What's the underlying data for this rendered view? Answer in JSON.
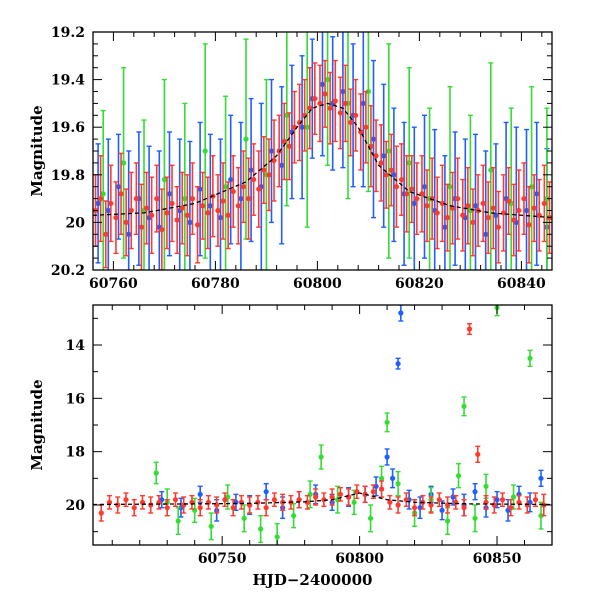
{
  "chart_data": [
    {
      "type": "scatter",
      "title": "",
      "xlabel": "",
      "ylabel": "Magnitude",
      "xlim": [
        60756,
        60846
      ],
      "ylim": [
        20.2,
        19.2
      ],
      "y_inverted": true,
      "x_ticks": [
        60760,
        60780,
        60800,
        60820,
        60840
      ],
      "x_tick_labels": [
        "60760",
        "60780",
        "60800",
        "60820",
        "60840"
      ],
      "y_ticks": [
        19.2,
        19.4,
        19.6,
        19.8,
        20,
        20.2
      ],
      "y_tick_labels": [
        "19.2",
        "19.4",
        "19.6",
        "19.8",
        "20",
        "20.2"
      ],
      "error_bars": true,
      "model_curve": {
        "x": [
          60756,
          60766,
          60776,
          60786,
          60792,
          60796,
          60799,
          60802,
          60805,
          60808,
          60812,
          60818,
          60826,
          60834,
          60846
        ],
        "y": [
          19.97,
          19.96,
          19.92,
          19.83,
          19.72,
          19.6,
          19.52,
          19.5,
          19.52,
          19.6,
          19.76,
          19.87,
          19.93,
          19.96,
          19.98
        ],
        "color": "#000000"
      },
      "series": [
        {
          "color": "#1f5fff",
          "x": [
            60757,
            60759,
            60761,
            60763,
            60765,
            60767,
            60769,
            60771,
            60773,
            60775,
            60777,
            60779,
            60781,
            60783,
            60785,
            60787,
            60789,
            60791,
            60793,
            60795,
            60797,
            60799,
            60801,
            60803,
            60805,
            60807,
            60809,
            60811,
            60813,
            60815,
            60817,
            60819,
            60821,
            60823,
            60825,
            60827,
            60829,
            60831,
            60833,
            60835,
            60837,
            60839,
            60841,
            60843,
            60845
          ],
          "y": [
            19.92,
            19.95,
            19.85,
            20.05,
            19.9,
            19.98,
            20.02,
            19.88,
            19.95,
            20.0,
            19.86,
            19.93,
            19.98,
            19.82,
            19.9,
            19.78,
            19.85,
            19.7,
            19.76,
            19.62,
            19.6,
            19.48,
            19.42,
            19.5,
            19.45,
            19.55,
            19.5,
            19.65,
            19.72,
            19.8,
            19.88,
            19.92,
            19.85,
            19.95,
            20.02,
            19.9,
            19.98,
            19.93,
            20.05,
            19.97,
            19.9,
            20.0,
            19.95,
            19.88,
            20.02
          ],
          "yerr": [
            0.25,
            0.3,
            0.22,
            0.35,
            0.28,
            0.3,
            0.32,
            0.26,
            0.3,
            0.34,
            0.28,
            0.3,
            0.33,
            0.27,
            0.32,
            0.3,
            0.35,
            0.3,
            0.33,
            0.28,
            0.3,
            0.25,
            0.3,
            0.28,
            0.32,
            0.3,
            0.35,
            0.33,
            0.3,
            0.28,
            0.3,
            0.32,
            0.3,
            0.34,
            0.3,
            0.28,
            0.33,
            0.3,
            0.35,
            0.3,
            0.32,
            0.4,
            0.34,
            0.3,
            0.33
          ]
        },
        {
          "color": "#33dd33",
          "x": [
            60758,
            60762,
            60766,
            60770,
            60774,
            60778,
            60782,
            60786,
            60790,
            60794,
            60798,
            60802,
            60806,
            60810,
            60814,
            60818,
            60822,
            60826,
            60830,
            60834,
            60838,
            60842,
            60845
          ],
          "y": [
            19.88,
            19.75,
            19.95,
            19.82,
            19.9,
            19.7,
            19.85,
            19.65,
            19.8,
            19.55,
            19.6,
            19.4,
            19.5,
            19.45,
            19.7,
            19.75,
            19.9,
            19.85,
            19.95,
            19.78,
            19.92,
            19.85,
            19.9
          ],
          "yerr": [
            0.35,
            0.4,
            0.38,
            0.42,
            0.4,
            0.45,
            0.38,
            0.42,
            0.4,
            0.38,
            0.42,
            0.36,
            0.4,
            0.42,
            0.45,
            0.4,
            0.38,
            0.42,
            0.4,
            0.45,
            0.4,
            0.42,
            0.38
          ]
        },
        {
          "color": "#ff3b2f",
          "x": [
            60756.5,
            60757.5,
            60758.5,
            60759.5,
            60760.5,
            60761.5,
            60762.5,
            60763.5,
            60764.5,
            60765.5,
            60766.5,
            60767.5,
            60768.5,
            60769.5,
            60770.5,
            60771.5,
            60772.5,
            60773.5,
            60774.5,
            60775.5,
            60776.5,
            60777.5,
            60778.5,
            60779.5,
            60780.5,
            60781.5,
            60782.5,
            60783.5,
            60784.5,
            60785.5,
            60786.5,
            60787.5,
            60788.5,
            60789.5,
            60790.5,
            60791.5,
            60792.5,
            60793.5,
            60794.5,
            60795.5,
            60796.5,
            60797.5,
            60798.5,
            60799.5,
            60800.5,
            60801.5,
            60802.5,
            60803.5,
            60804.5,
            60805.5,
            60806.5,
            60807.5,
            60808.5,
            60809.5,
            60810.5,
            60811.5,
            60812.5,
            60813.5,
            60814.5,
            60815.5,
            60816.5,
            60817.5,
            60818.5,
            60819.5,
            60820.5,
            60821.5,
            60822.5,
            60823.5,
            60824.5,
            60825.5,
            60826.5,
            60827.5,
            60828.5,
            60829.5,
            60830.5,
            60831.5,
            60832.5,
            60833.5,
            60834.5,
            60835.5,
            60836.5,
            60837.5,
            60838.5,
            60839.5,
            60840.5,
            60841.5,
            60842.5,
            60843.5,
            60844.5,
            60845.5
          ],
          "y": [
            19.95,
            19.9,
            20.05,
            19.92,
            19.98,
            19.88,
            20.0,
            19.95,
            19.9,
            20.02,
            19.94,
            19.97,
            19.9,
            20.03,
            19.96,
            19.92,
            19.99,
            19.94,
            19.97,
            19.9,
            20.01,
            19.93,
            19.96,
            19.89,
            19.95,
            19.91,
            19.97,
            19.87,
            19.93,
            19.85,
            19.9,
            19.82,
            19.86,
            19.78,
            19.8,
            19.74,
            19.7,
            19.66,
            19.68,
            19.6,
            19.58,
            19.55,
            19.52,
            19.48,
            19.5,
            19.46,
            19.52,
            19.49,
            19.54,
            19.5,
            19.58,
            19.55,
            19.62,
            19.6,
            19.68,
            19.72,
            19.75,
            19.8,
            19.78,
            19.85,
            19.82,
            19.88,
            19.86,
            19.9,
            19.88,
            19.93,
            19.9,
            19.96,
            19.92,
            19.98,
            19.94,
            19.9,
            19.97,
            19.93,
            20.0,
            19.95,
            19.92,
            19.98,
            19.94,
            20.02,
            19.96,
            19.91,
            19.99,
            19.95,
            19.9,
            20.01,
            19.94,
            19.97,
            19.92,
            19.98
          ],
          "yerr": [
            0.15,
            0.18,
            0.14,
            0.16,
            0.15,
            0.17,
            0.14,
            0.16,
            0.15,
            0.18,
            0.15,
            0.16,
            0.14,
            0.17,
            0.15,
            0.16,
            0.14,
            0.15,
            0.17,
            0.15,
            0.16,
            0.14,
            0.15,
            0.17,
            0.15,
            0.16,
            0.14,
            0.15,
            0.16,
            0.15,
            0.17,
            0.15,
            0.16,
            0.14,
            0.15,
            0.17,
            0.15,
            0.16,
            0.14,
            0.15,
            0.16,
            0.15,
            0.17,
            0.15,
            0.16,
            0.14,
            0.15,
            0.17,
            0.15,
            0.16,
            0.14,
            0.15,
            0.16,
            0.15,
            0.17,
            0.15,
            0.16,
            0.14,
            0.15,
            0.17,
            0.15,
            0.16,
            0.14,
            0.15,
            0.16,
            0.15,
            0.17,
            0.15,
            0.16,
            0.14,
            0.15,
            0.17,
            0.15,
            0.16,
            0.14,
            0.15,
            0.16,
            0.15,
            0.17,
            0.15,
            0.16,
            0.14,
            0.15,
            0.17,
            0.15,
            0.16,
            0.14,
            0.15,
            0.16,
            0.15
          ]
        }
      ]
    },
    {
      "type": "scatter",
      "title": "",
      "xlabel": "HJD−2400000",
      "ylabel": "Magnitude",
      "xlim": [
        60703,
        60870
      ],
      "ylim": [
        21.5,
        12.5
      ],
      "y_inverted": true,
      "x_ticks": [
        60750,
        60800,
        60850
      ],
      "x_tick_labels": [
        "60750",
        "60800",
        "60850"
      ],
      "y_ticks": [
        14,
        16,
        18,
        20
      ],
      "y_tick_labels": [
        "14",
        "16",
        "18",
        "20"
      ],
      "error_bars": true,
      "model_curve": {
        "x": [
          60703,
          60720,
          60740,
          60760,
          60780,
          60790,
          60800,
          60810,
          60820,
          60840,
          60870
        ],
        "y": [
          19.98,
          19.97,
          19.96,
          19.94,
          19.88,
          19.8,
          19.55,
          19.8,
          19.9,
          19.96,
          19.98
        ],
        "color": "#000000"
      },
      "series": [
        {
          "color": "#1f5fff",
          "x": [
            60728,
            60735,
            60742,
            60748,
            60755,
            60760,
            60766,
            60772,
            60778,
            60784,
            60790,
            60796,
            60802,
            60806,
            60810,
            60812,
            60814,
            60815,
            60818,
            60822,
            60826,
            60830,
            60834,
            60838,
            60842,
            60846,
            60850,
            60854,
            60858,
            60862,
            60866
          ],
          "y": [
            19.8,
            20.1,
            19.6,
            20.2,
            19.9,
            20.0,
            19.5,
            20.1,
            19.8,
            19.6,
            19.9,
            19.7,
            19.6,
            19.3,
            18.2,
            19.0,
            14.7,
            12.8,
            19.8,
            20.1,
            19.6,
            20.2,
            19.7,
            20.0,
            19.5,
            20.1,
            19.8,
            20.2,
            19.6,
            19.9,
            19.0
          ],
          "yerr": [
            0.3,
            0.35,
            0.3,
            0.4,
            0.3,
            0.35,
            0.3,
            0.4,
            0.3,
            0.35,
            0.3,
            0.35,
            0.3,
            0.35,
            0.3,
            0.35,
            0.2,
            0.3,
            0.35,
            0.4,
            0.3,
            0.35,
            0.3,
            0.4,
            0.3,
            0.35,
            0.3,
            0.4,
            0.3,
            0.35,
            0.3
          ]
        },
        {
          "color": "#33dd33",
          "x": [
            60726,
            60730,
            60734,
            60740,
            60746,
            60752,
            60758,
            60764,
            60770,
            60776,
            60782,
            60786,
            60792,
            60798,
            60804,
            60808,
            60810,
            60814,
            60820,
            60826,
            60832,
            60836,
            60838,
            60842,
            60846,
            60850,
            60856,
            60862,
            60866
          ],
          "y": [
            18.8,
            19.9,
            20.6,
            20.2,
            20.8,
            19.7,
            20.5,
            20.9,
            21.2,
            20.4,
            19.6,
            18.2,
            19.8,
            19.9,
            20.5,
            19.0,
            16.9,
            19.2,
            20.3,
            19.8,
            20.6,
            18.9,
            16.3,
            20.5,
            19.3,
            12.6,
            19.7,
            14.5,
            20.4
          ],
          "yerr": [
            0.4,
            0.5,
            0.5,
            0.45,
            0.5,
            0.45,
            0.5,
            0.5,
            0.5,
            0.45,
            0.5,
            0.45,
            0.5,
            0.45,
            0.5,
            0.45,
            0.35,
            0.45,
            0.5,
            0.45,
            0.5,
            0.45,
            0.35,
            0.5,
            0.45,
            0.3,
            0.45,
            0.3,
            0.5
          ]
        },
        {
          "color": "#ff3b2f",
          "x": [
            60706,
            60709,
            60712,
            60715,
            60718,
            60721,
            60724,
            60727,
            60730,
            60733,
            60736,
            60739,
            60742,
            60745,
            60748,
            60751,
            60754,
            60757,
            60760,
            60763,
            60766,
            60769,
            60772,
            60775,
            60778,
            60781,
            60784,
            60787,
            60790,
            60793,
            60796,
            60799,
            60802,
            60805,
            60808,
            60811,
            60814,
            60817,
            60820,
            60823,
            60826,
            60829,
            60832,
            60835,
            60838,
            60840,
            60843,
            60846,
            60849,
            60852,
            60855,
            60858,
            60861,
            60864,
            60867
          ],
          "y": [
            20.3,
            19.9,
            20.0,
            19.8,
            20.1,
            19.9,
            20.0,
            19.9,
            20.1,
            19.8,
            20.0,
            19.9,
            20.1,
            19.9,
            20.0,
            19.8,
            20.1,
            19.9,
            20.0,
            19.9,
            20.1,
            19.8,
            19.9,
            19.9,
            19.8,
            19.9,
            19.7,
            19.8,
            19.7,
            19.6,
            19.7,
            19.5,
            19.6,
            19.5,
            19.4,
            19.9,
            20.0,
            19.8,
            20.1,
            19.9,
            20.0,
            19.8,
            20.0,
            19.9,
            20.1,
            13.4,
            18.1,
            19.9,
            20.0,
            19.8,
            20.1,
            19.9,
            20.0,
            19.8,
            20.0
          ],
          "yerr": [
            0.3,
            0.25,
            0.3,
            0.25,
            0.3,
            0.25,
            0.3,
            0.25,
            0.3,
            0.25,
            0.3,
            0.25,
            0.3,
            0.25,
            0.3,
            0.25,
            0.3,
            0.25,
            0.3,
            0.25,
            0.3,
            0.25,
            0.3,
            0.25,
            0.3,
            0.25,
            0.3,
            0.25,
            0.3,
            0.25,
            0.3,
            0.25,
            0.3,
            0.25,
            0.3,
            0.25,
            0.3,
            0.25,
            0.3,
            0.25,
            0.3,
            0.25,
            0.3,
            0.25,
            0.3,
            0.2,
            0.3,
            0.25,
            0.3,
            0.25,
            0.3,
            0.25,
            0.3,
            0.25,
            0.4
          ]
        }
      ]
    }
  ]
}
